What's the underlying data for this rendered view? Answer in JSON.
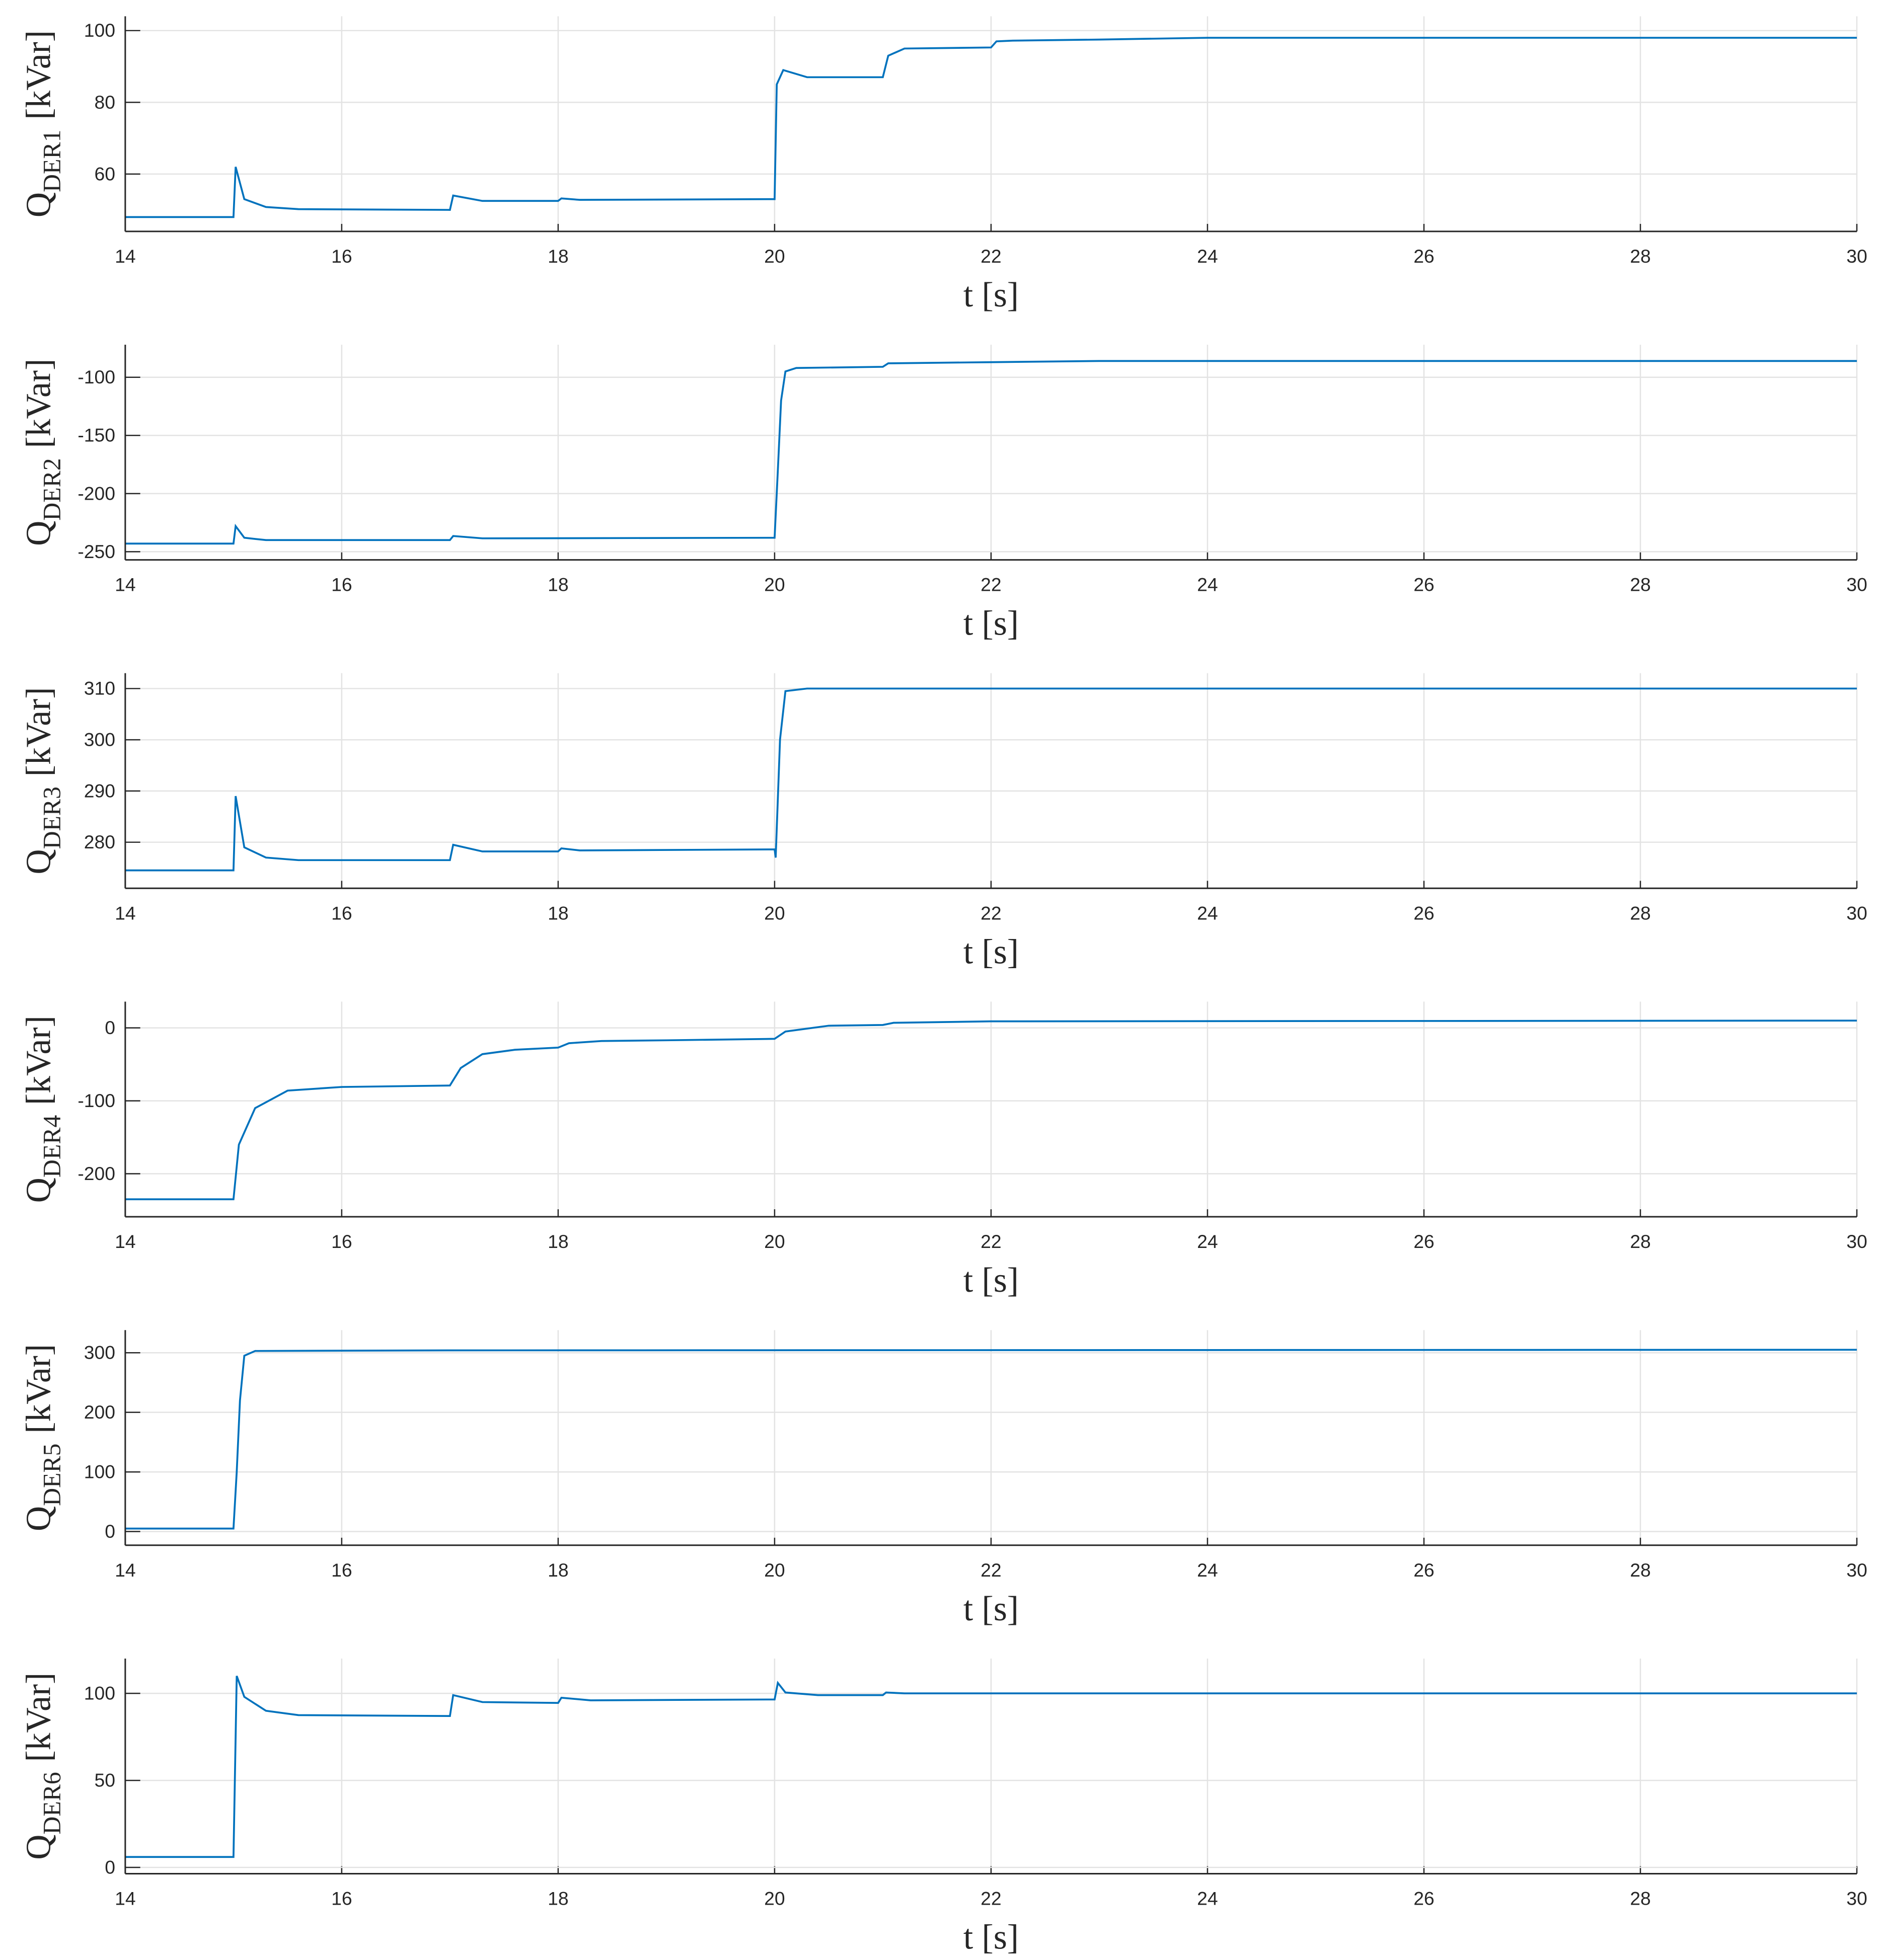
{
  "chart_data": [
    {
      "type": "line",
      "xlabel": "t [s]",
      "ylabel": {
        "symbol": "Q",
        "subscript": "DER1",
        "unit": "[kVar]"
      },
      "grid": true,
      "color": "#0072bd",
      "xlim": [
        14,
        30
      ],
      "xticks": [
        14,
        16,
        18,
        20,
        22,
        24,
        26,
        28,
        30
      ],
      "ylim": [
        44,
        104
      ],
      "yticks": [
        60,
        80,
        100
      ],
      "x": [
        14,
        15,
        15.02,
        15.1,
        15.3,
        15.6,
        17,
        17.03,
        17.3,
        18,
        18.03,
        18.2,
        20,
        20.02,
        20.08,
        20.3,
        21,
        21.05,
        21.2,
        22,
        22.05,
        22.2,
        23,
        24,
        30
      ],
      "values": [
        48,
        48,
        62,
        53,
        50.8,
        50.2,
        50,
        54,
        52.5,
        52.5,
        53.2,
        52.8,
        53,
        85,
        89,
        87,
        87,
        93,
        95,
        95.3,
        97,
        97.2,
        97.5,
        98,
        98
      ]
    },
    {
      "type": "line",
      "xlabel": "t [s]",
      "ylabel": {
        "symbol": "Q",
        "subscript": "DER2",
        "unit": "[kVar]"
      },
      "grid": true,
      "color": "#0072bd",
      "xlim": [
        14,
        30
      ],
      "xticks": [
        14,
        16,
        18,
        20,
        22,
        24,
        26,
        28,
        30
      ],
      "ylim": [
        -257,
        -72
      ],
      "yticks": [
        -250,
        -200,
        -150,
        -100
      ],
      "x": [
        14,
        15,
        15.02,
        15.1,
        15.3,
        17,
        17.03,
        17.3,
        20,
        20.03,
        20.06,
        20.1,
        20.2,
        21,
        21.05,
        22,
        23,
        30
      ],
      "values": [
        -243,
        -243,
        -228,
        -238,
        -240,
        -240,
        -236.5,
        -238.5,
        -238,
        -180,
        -120,
        -95,
        -92,
        -91,
        -88,
        -87,
        -86,
        -86
      ]
    },
    {
      "type": "line",
      "xlabel": "t [s]",
      "ylabel": {
        "symbol": "Q",
        "subscript": "DER3",
        "unit": "[kVar]"
      },
      "grid": true,
      "color": "#0072bd",
      "xlim": [
        14,
        30
      ],
      "xticks": [
        14,
        16,
        18,
        20,
        22,
        24,
        26,
        28,
        30
      ],
      "ylim": [
        271,
        313
      ],
      "yticks": [
        280,
        290,
        300,
        310
      ],
      "x": [
        14,
        15,
        15.02,
        15.1,
        15.3,
        15.6,
        17,
        17.03,
        17.3,
        18,
        18.03,
        18.2,
        20,
        20.01,
        20.05,
        20.1,
        20.3,
        30
      ],
      "values": [
        274.5,
        274.5,
        289,
        279,
        277,
        276.5,
        276.5,
        279.5,
        278.2,
        278.2,
        278.8,
        278.4,
        278.6,
        277,
        300,
        309.5,
        310,
        310
      ]
    },
    {
      "type": "line",
      "xlabel": "t [s]",
      "ylabel": {
        "symbol": "Q",
        "subscript": "DER4",
        "unit": "[kVar]"
      },
      "grid": true,
      "color": "#0072bd",
      "xlim": [
        14,
        30
      ],
      "xticks": [
        14,
        16,
        18,
        20,
        22,
        24,
        26,
        28,
        30
      ],
      "ylim": [
        -259,
        36
      ],
      "yticks": [
        -200,
        -100,
        0
      ],
      "x": [
        14,
        15,
        15.05,
        15.2,
        15.5,
        16,
        17,
        17.1,
        17.3,
        17.6,
        18,
        18.1,
        18.4,
        19,
        20,
        20.1,
        20.5,
        21,
        21.1,
        22,
        30
      ],
      "values": [
        -235,
        -235,
        -160,
        -110,
        -86,
        -81,
        -79,
        -55,
        -36,
        -30,
        -27,
        -21,
        -18,
        -17,
        -15,
        -5,
        3,
        4,
        7,
        9,
        10
      ]
    },
    {
      "type": "line",
      "xlabel": "t [s]",
      "ylabel": {
        "symbol": "Q",
        "subscript": "DER5",
        "unit": "[kVar]"
      },
      "grid": true,
      "color": "#0072bd",
      "xlim": [
        14,
        30
      ],
      "xticks": [
        14,
        16,
        18,
        20,
        22,
        24,
        26,
        28,
        30
      ],
      "ylim": [
        -23,
        338
      ],
      "yticks": [
        0,
        100,
        200,
        300
      ],
      "x": [
        14,
        15,
        15.03,
        15.06,
        15.1,
        15.2,
        17,
        30
      ],
      "values": [
        5,
        5,
        100,
        220,
        295,
        303,
        304,
        305
      ]
    },
    {
      "type": "line",
      "xlabel": "t [s]",
      "ylabel": {
        "symbol": "Q",
        "subscript": "DER6",
        "unit": "[kVar]"
      },
      "grid": true,
      "color": "#0072bd",
      "xlim": [
        14,
        30
      ],
      "xticks": [
        14,
        16,
        18,
        20,
        22,
        24,
        26,
        28,
        30
      ],
      "ylim": [
        -3.6,
        120
      ],
      "yticks": [
        0,
        50,
        100
      ],
      "x": [
        14,
        15,
        15.03,
        15.1,
        15.3,
        15.6,
        17,
        17.03,
        17.3,
        18,
        18.03,
        18.3,
        20,
        20.03,
        20.1,
        20.4,
        21,
        21.03,
        21.2,
        30
      ],
      "values": [
        6,
        6,
        110,
        98,
        90,
        87.5,
        87,
        99,
        95,
        94.5,
        97.5,
        96,
        96.5,
        106,
        100.5,
        99,
        99,
        100.5,
        100,
        100
      ]
    }
  ]
}
